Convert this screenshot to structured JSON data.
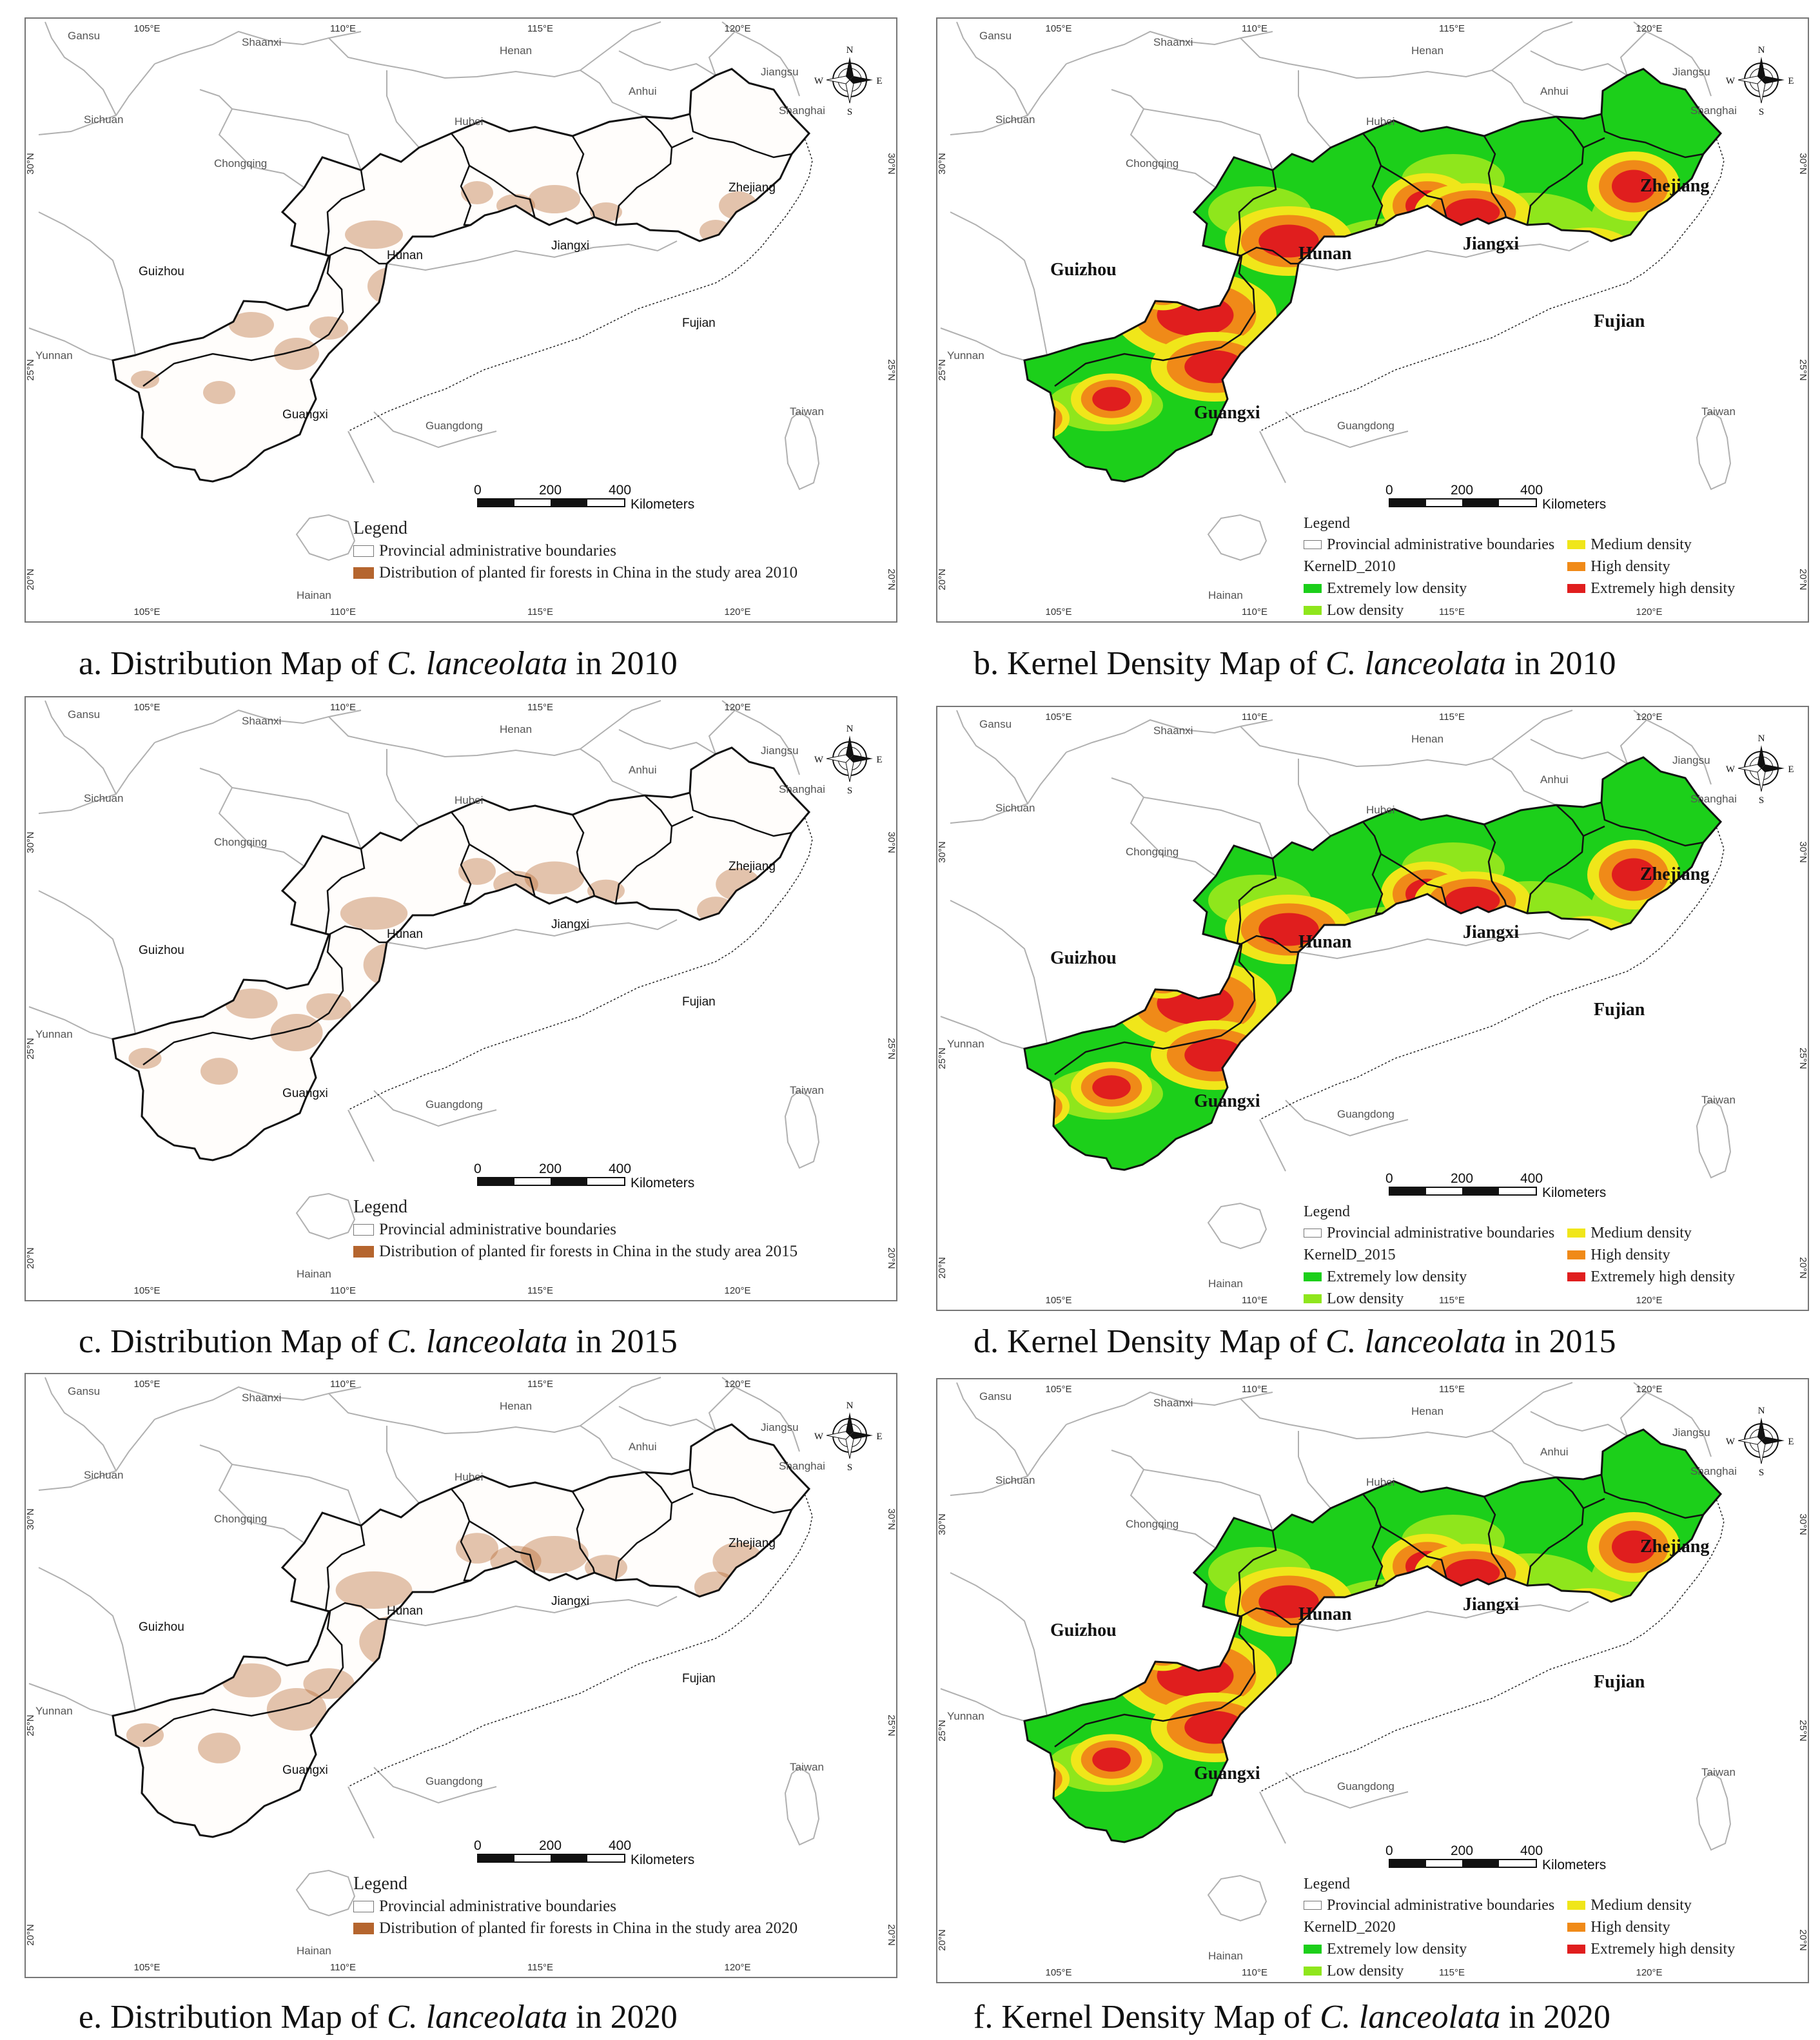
{
  "colors": {
    "fir": "#b5652e",
    "extremely_low": "#1ccf1a",
    "low": "#8fe61c",
    "medium": "#f0e61a",
    "high": "#f08a18",
    "extremely_high": "#e01e1e",
    "boundary": "#111111",
    "neighbor_boundary": "#b0b0b0"
  },
  "axes": {
    "lon_ticks": [
      "105°E",
      "110°E",
      "115°E",
      "120°E"
    ],
    "lat_ticks": [
      "30°N",
      "25°N",
      "20°N"
    ]
  },
  "compass": {
    "n": "N",
    "s": "S",
    "e": "E",
    "w": "W"
  },
  "scale_bar": {
    "ticks": [
      "0",
      "200",
      "400"
    ],
    "unit": "Kilometers"
  },
  "provinces": {
    "study": [
      "Guizhou",
      "Hunan",
      "Jiangxi",
      "Zhejiang",
      "Fujian",
      "Guangxi"
    ],
    "neighbors": [
      "Gansu",
      "Shaanxi",
      "Henan",
      "Jiangsu",
      "Anhui",
      "Shanghai",
      "Sichuan",
      "Hubei",
      "Chongqing",
      "Yunnan",
      "Guangdong",
      "Taiwan",
      "Hainan"
    ]
  },
  "panels": [
    {
      "id": "a",
      "type": "distribution",
      "year": "2010",
      "caption_prefix": "a. Distribution Map of ",
      "species": "C. lanceolata",
      "caption_suffix": " in 2010",
      "legend_title": "Legend",
      "legend_boundary": "Provincial administrative boundaries",
      "legend_fir": "Distribution of planted fir forests in China in the study area 2010"
    },
    {
      "id": "b",
      "type": "kernel",
      "year": "2010",
      "caption_prefix": "b. Kernel Density Map of ",
      "species": "C. lanceolata",
      "caption_suffix": " in 2010",
      "legend_title": "Legend",
      "legend_boundary": "Provincial administrative boundaries",
      "kernel_label": "KernelD_2010",
      "classes": [
        "Extremely low density",
        "Low density",
        "Medium density",
        "High density",
        "Extremely high density"
      ]
    },
    {
      "id": "c",
      "type": "distribution",
      "year": "2015",
      "caption_prefix": "c. Distribution Map of ",
      "species": "C. lanceolata",
      "caption_suffix": " in 2015",
      "legend_title": "Legend",
      "legend_boundary": "Provincial administrative boundaries",
      "legend_fir": "Distribution of planted fir forests in China in the study area 2015"
    },
    {
      "id": "d",
      "type": "kernel",
      "year": "2015",
      "caption_prefix": "d. Kernel Density Map of ",
      "species": "C. lanceolata",
      "caption_suffix": " in 2015",
      "legend_title": "Legend",
      "legend_boundary": "Provincial administrative boundaries",
      "kernel_label": "KernelD_2015",
      "classes": [
        "Extremely low density",
        "Low density",
        "Medium density",
        "High density",
        "Extremely high density"
      ]
    },
    {
      "id": "e",
      "type": "distribution",
      "year": "2020",
      "caption_prefix": "e. Distribution Map of ",
      "species": "C. lanceolata",
      "caption_suffix": " in 2020",
      "legend_title": "Legend",
      "legend_boundary": "Provincial administrative boundaries",
      "legend_fir": "Distribution of planted fir forests in China in the study area 2020"
    },
    {
      "id": "f",
      "type": "kernel",
      "year": "2020",
      "caption_prefix": "f. Kernel Density Map of ",
      "species": "C. lanceolata",
      "caption_suffix": " in 2020",
      "legend_title": "Legend",
      "legend_boundary": "Provincial administrative boundaries",
      "kernel_label": "KernelD_2020",
      "classes": [
        "Extremely low density",
        "Low density",
        "Medium density",
        "High density",
        "Extremely high density"
      ]
    }
  ]
}
